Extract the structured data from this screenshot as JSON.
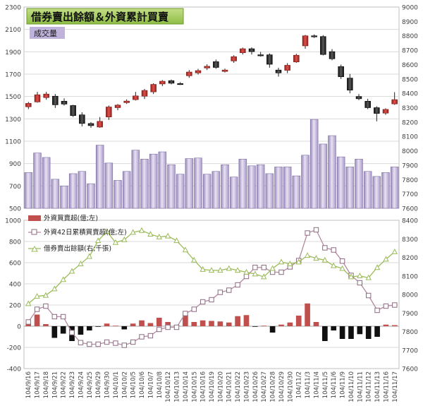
{
  "chart_data": [
    {
      "type": "candlestick",
      "title": "借券賣出餘額＆外資累計買賣",
      "badge": "成交量",
      "left_axis": {
        "ylim": [
          500,
          2300
        ],
        "ticks": [
          "500",
          "700",
          "900",
          "1100",
          "1300",
          "1500",
          "1700",
          "1900",
          "2100",
          "2300"
        ]
      },
      "right_axis": {
        "ylim": [
          7600,
          9000
        ],
        "ticks": [
          "7600",
          "7700",
          "7800",
          "7900",
          "8000",
          "8100",
          "8200",
          "8300",
          "8400",
          "8500",
          "8600",
          "8700",
          "8800",
          "8900",
          "9000"
        ]
      },
      "volume": [
        820,
        995,
        955,
        760,
        700,
        810,
        830,
        720,
        1065,
        905,
        750,
        830,
        1020,
        940,
        985,
        1005,
        890,
        805,
        945,
        950,
        805,
        830,
        890,
        780,
        940,
        880,
        890,
        810,
        870,
        870,
        790,
        975,
        1295,
        1075,
        1150,
        960,
        870,
        940,
        830,
        785,
        820,
        870
      ],
      "candles": [
        {
          "o": 8306,
          "c": 8330,
          "h": 8340,
          "l": 8290
        },
        {
          "o": 8340,
          "c": 8390,
          "h": 8410,
          "l": 8335
        },
        {
          "o": 8370,
          "c": 8395,
          "h": 8410,
          "l": 8355
        },
        {
          "o": 8380,
          "c": 8320,
          "h": 8395,
          "l": 8298
        },
        {
          "o": 8345,
          "c": 8325,
          "h": 8365,
          "l": 8315
        },
        {
          "o": 8315,
          "c": 8245,
          "h": 8320,
          "l": 8235
        },
        {
          "o": 8250,
          "c": 8190,
          "h": 8268,
          "l": 8170
        },
        {
          "o": 8190,
          "c": 8175,
          "h": 8200,
          "l": 8160
        },
        {
          "o": 8165,
          "c": 8205,
          "h": 8235,
          "l": 8160
        },
        {
          "o": 8235,
          "c": 8305,
          "h": 8315,
          "l": 8215
        },
        {
          "o": 8300,
          "c": 8318,
          "h": 8325,
          "l": 8282
        },
        {
          "o": 8335,
          "c": 8346,
          "h": 8358,
          "l": 8326
        },
        {
          "o": 8356,
          "c": 8382,
          "h": 8410,
          "l": 8350
        },
        {
          "o": 8380,
          "c": 8420,
          "h": 8430,
          "l": 8360
        },
        {
          "o": 8410,
          "c": 8462,
          "h": 8470,
          "l": 8395
        },
        {
          "o": 8465,
          "c": 8484,
          "h": 8492,
          "l": 8450
        },
        {
          "o": 8488,
          "c": 8470,
          "h": 8496,
          "l": 8462
        },
        {
          "o": 8468,
          "c": 8462,
          "h": 8478,
          "l": 8458
        },
        {
          "o": 8522,
          "c": 8548,
          "h": 8562,
          "l": 8508
        },
        {
          "o": 8542,
          "c": 8558,
          "h": 8570,
          "l": 8530
        },
        {
          "o": 8576,
          "c": 8588,
          "h": 8602,
          "l": 8562
        },
        {
          "o": 8620,
          "c": 8580,
          "h": 8635,
          "l": 8570
        },
        {
          "o": 8552,
          "c": 8562,
          "h": 8572,
          "l": 8545
        },
        {
          "o": 8625,
          "c": 8655,
          "h": 8665,
          "l": 8612
        },
        {
          "o": 8682,
          "c": 8710,
          "h": 8718,
          "l": 8670
        },
        {
          "o": 8710,
          "c": 8690,
          "h": 8720,
          "l": 8670
        },
        {
          "o": 8668,
          "c": 8662,
          "h": 8688,
          "l": 8655
        },
        {
          "o": 8668,
          "c": 8602,
          "h": 8678,
          "l": 8578
        },
        {
          "o": 8562,
          "c": 8542,
          "h": 8578,
          "l": 8516
        },
        {
          "o": 8560,
          "c": 8595,
          "h": 8610,
          "l": 8540
        },
        {
          "o": 8618,
          "c": 8665,
          "h": 8675,
          "l": 8612
        },
        {
          "o": 8730,
          "c": 8800,
          "h": 8806,
          "l": 8710
        },
        {
          "o": 8800,
          "c": 8795,
          "h": 8810,
          "l": 8785
        },
        {
          "o": 8795,
          "c": 8670,
          "h": 8805,
          "l": 8664
        },
        {
          "o": 8690,
          "c": 8640,
          "h": 8708,
          "l": 8630
        },
        {
          "o": 8586,
          "c": 8515,
          "h": 8600,
          "l": 8500
        },
        {
          "o": 8506,
          "c": 8422,
          "h": 8535,
          "l": 8400
        },
        {
          "o": 8378,
          "c": 8362,
          "h": 8395,
          "l": 8352
        },
        {
          "o": 8345,
          "c": 8300,
          "h": 8362,
          "l": 8290
        },
        {
          "o": 8300,
          "c": 8260,
          "h": 8310,
          "l": 8205
        },
        {
          "o": 8262,
          "c": 8288,
          "h": 8296,
          "l": 8250
        },
        {
          "o": 8326,
          "c": 8356,
          "h": 8408,
          "l": 8320
        }
      ]
    },
    {
      "type": "bar+line",
      "left_axis": {
        "ylim": [
          -400,
          1000
        ],
        "ticks": [
          "-400",
          "-200",
          "0",
          "200",
          "400",
          "600",
          "800",
          "1000"
        ]
      },
      "right_axis": {
        "ylim": [
          7600,
          8400
        ],
        "ticks": [
          "7600",
          "7700",
          "7800",
          "7900",
          "8000",
          "8100",
          "8200",
          "8300",
          "8400"
        ]
      },
      "categories": [
        "104/9/16",
        "104/9/17",
        "104/9/18",
        "104/9/21",
        "104/9/22",
        "104/9/23",
        "104/9/24",
        "104/9/25",
        "104/9/29",
        "104/9/30",
        "104/10/1",
        "104/10/2",
        "104/10/5",
        "104/10/6",
        "104/10/7",
        "104/10/8",
        "104/10/12",
        "104/10/13",
        "104/10/14",
        "104/10/15",
        "104/10/16",
        "104/10/19",
        "104/10/20",
        "104/10/21",
        "104/10/22",
        "104/10/23",
        "104/10/26",
        "104/10/27",
        "104/10/28",
        "104/10/29",
        "104/10/30",
        "104/11/2",
        "104/11/3",
        "104/11/4",
        "104/11/5",
        "104/11/6",
        "104/11/9",
        "104/11/10",
        "104/11/11",
        "104/11/12",
        "104/11/13",
        "104/11/16",
        "104/11/17"
      ],
      "legend": [
        {
          "label": "外資買賣超(億;左)",
          "color": "#c0504d"
        },
        {
          "label": "外資42日累積買賣超(億;左)",
          "color": "#a05a7a"
        },
        {
          "label": "借券賣出餘額(右;千張)",
          "color": "#9bbb59"
        }
      ],
      "series": [
        {
          "name": "外資買賣超(億;左)",
          "values": [
            30,
            110,
            20,
            -110,
            -70,
            -140,
            -80,
            -40,
            -5,
            25,
            5,
            -30,
            25,
            55,
            30,
            80,
            40,
            10,
            105,
            40,
            55,
            50,
            45,
            35,
            95,
            105,
            -5,
            5,
            -60,
            15,
            35,
            100,
            215,
            40,
            -140,
            -40,
            -120,
            -120,
            -75,
            -120,
            -100,
            15,
            10
          ]
        },
        {
          "name": "外資42日累積買賣超(億;左)",
          "values": [
            40,
            160,
            190,
            90,
            90,
            -60,
            -155,
            -170,
            -170,
            -150,
            -160,
            -180,
            -150,
            -100,
            -90,
            -30,
            -10,
            -10,
            120,
            160,
            230,
            250,
            320,
            340,
            390,
            470,
            555,
            555,
            510,
            510,
            560,
            620,
            880,
            910,
            740,
            720,
            615,
            480,
            410,
            290,
            150,
            190,
            200
          ]
        },
        {
          "name": "借券賣出餘額(右;千張)",
          "values": [
            7950,
            7990,
            7995,
            8030,
            8080,
            8125,
            8165,
            8205,
            8290,
            8340,
            8280,
            8295,
            8335,
            8345,
            8325,
            8310,
            8315,
            8290,
            8240,
            8185,
            8135,
            8130,
            8130,
            8140,
            8130,
            8120,
            8110,
            8095,
            8140,
            8175,
            8165,
            8175,
            8210,
            8195,
            8185,
            8155,
            8140,
            8095,
            8100,
            8090,
            8145,
            8190,
            8230
          ]
        }
      ]
    }
  ]
}
